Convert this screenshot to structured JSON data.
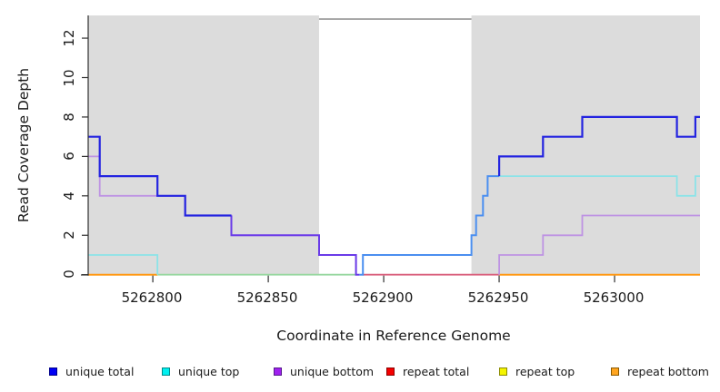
{
  "chart_data": {
    "type": "line",
    "subtype": "step-coverage-plot",
    "title": "",
    "xlabel": "Coordinate in Reference Genome",
    "ylabel": "Read Coverage Depth",
    "xlim": [
      5262772,
      5263037
    ],
    "ylim": [
      0,
      13.2
    ],
    "grid": false,
    "legend_position": "bottom",
    "xticks": [
      "5262800",
      "5262850",
      "5262900",
      "5262950",
      "5263000"
    ],
    "xtick_values": [
      5262800,
      5262850,
      5262900,
      5262950,
      5263000
    ],
    "yticks": [
      "0",
      "2",
      "4",
      "6",
      "8",
      "10",
      "12"
    ],
    "ytick_values": [
      0,
      2,
      4,
      6,
      8,
      10,
      12
    ],
    "colors": {
      "background": "#ffffff",
      "shading": "#DCDCDC",
      "gap_top_border": "#8C8C8C",
      "axis": "#2F2F2F",
      "unique_total": "#2424E0",
      "unique_top": "#8BE3E8",
      "unique_bottom": "#BE93E3",
      "repeat_total": "#D9607E",
      "repeat_top": "#98D7A0",
      "repeat_bottom": "#FF9914",
      "blend_total_plus_top": "#4B8FF0",
      "blend_total_plus_bottom": "#6A3BE8"
    },
    "shaded_regions": [
      [
        5262772,
        5262872
      ],
      [
        5262938,
        5263037
      ]
    ],
    "gap_top_border_span": [
      5262872,
      5262938
    ],
    "series": [
      {
        "name": "unique total",
        "step_points": [
          [
            5262772,
            7
          ],
          [
            5262777,
            5
          ],
          [
            5262802,
            4
          ],
          [
            5262814,
            3
          ],
          [
            5262834,
            2
          ],
          [
            5262872,
            1
          ],
          [
            5262888,
            0
          ],
          [
            5262891,
            1
          ],
          [
            5262938,
            2
          ],
          [
            5262940,
            3
          ],
          [
            5262943,
            4
          ],
          [
            5262945,
            5
          ],
          [
            5262950,
            6
          ],
          [
            5262969,
            7
          ],
          [
            5262986,
            8
          ],
          [
            5263027,
            7
          ],
          [
            5263035,
            8
          ],
          [
            5263037,
            8
          ]
        ]
      },
      {
        "name": "unique top",
        "step_points": [
          [
            5262772,
            1
          ],
          [
            5262802,
            0
          ],
          [
            5262891,
            1
          ],
          [
            5262938,
            2
          ],
          [
            5262940,
            3
          ],
          [
            5262943,
            4
          ],
          [
            5262945,
            5
          ],
          [
            5263027,
            4
          ],
          [
            5263035,
            5
          ],
          [
            5263037,
            5
          ]
        ]
      },
      {
        "name": "unique bottom",
        "step_points": [
          [
            5262772,
            6
          ],
          [
            5262777,
            4
          ],
          [
            5262814,
            3
          ],
          [
            5262834,
            2
          ],
          [
            5262872,
            1
          ],
          [
            5262888,
            0
          ],
          [
            5262950,
            1
          ],
          [
            5262969,
            2
          ],
          [
            5262986,
            3
          ],
          [
            5263037,
            3
          ]
        ]
      },
      {
        "name": "repeat total",
        "step_points": [
          [
            5262772,
            0
          ],
          [
            5263037,
            0
          ]
        ]
      },
      {
        "name": "repeat top",
        "step_points": [
          [
            5262772,
            0
          ],
          [
            5263037,
            0
          ]
        ]
      },
      {
        "name": "repeat bottom",
        "step_points": [
          [
            5262772,
            0
          ],
          [
            5263037,
            0
          ]
        ]
      }
    ],
    "rendered_polylines": [
      {
        "name": "zero-line-green-blend",
        "color": "#98D7A0",
        "width": 1.8,
        "points": [
          [
            5262802,
            0
          ],
          [
            5262888,
            0
          ]
        ]
      },
      {
        "name": "zero-line-crimson-blend",
        "color": "#D9607E",
        "width": 1.8,
        "points": [
          [
            5262891,
            0
          ],
          [
            5262950,
            0
          ]
        ]
      },
      {
        "name": "zero-line-orange-left",
        "color": "#FF9914",
        "width": 2,
        "points": [
          [
            5262772,
            0
          ],
          [
            5262802,
            0
          ]
        ]
      },
      {
        "name": "zero-line-orange-right",
        "color": "#FF9914",
        "width": 2,
        "points": [
          [
            5262950,
            0
          ],
          [
            5263037,
            0
          ]
        ]
      },
      {
        "name": "unique-bottom-left",
        "color": "#BE93E3",
        "width": 1.8,
        "points": [
          [
            5262772,
            6
          ],
          [
            5262777,
            6
          ],
          [
            5262777,
            4
          ],
          [
            5262814,
            4
          ],
          [
            5262814,
            3
          ],
          [
            5262834,
            3
          ],
          [
            5262834,
            2
          ],
          [
            5262872,
            2
          ],
          [
            5262872,
            1
          ],
          [
            5262888,
            1
          ],
          [
            5262888,
            0
          ]
        ]
      },
      {
        "name": "unique-bottom-right",
        "color": "#BE93E3",
        "width": 1.8,
        "points": [
          [
            5262950,
            0
          ],
          [
            5262950,
            1
          ],
          [
            5262969,
            1
          ],
          [
            5262969,
            2
          ],
          [
            5262986,
            2
          ],
          [
            5262986,
            3
          ],
          [
            5263037,
            3
          ]
        ]
      },
      {
        "name": "unique-top-left",
        "color": "#8BE3E8",
        "width": 1.8,
        "points": [
          [
            5262772,
            1
          ],
          [
            5262802,
            1
          ],
          [
            5262802,
            0
          ]
        ]
      },
      {
        "name": "unique-top-right",
        "color": "#8BE3E8",
        "width": 1.8,
        "points": [
          [
            5262950,
            5
          ],
          [
            5263027,
            5
          ],
          [
            5263027,
            4
          ],
          [
            5263035,
            4
          ],
          [
            5263035,
            5
          ],
          [
            5263037,
            5
          ]
        ]
      },
      {
        "name": "total-blend-violet",
        "color": "#6A3BE8",
        "width": 2,
        "points": [
          [
            5262834,
            3
          ],
          [
            5262834,
            2
          ],
          [
            5262872,
            2
          ],
          [
            5262872,
            1
          ],
          [
            5262888,
            1
          ],
          [
            5262888,
            0
          ],
          [
            5262889.5,
            0
          ]
        ]
      },
      {
        "name": "total-blend-dodger",
        "color": "#4B8FF0",
        "width": 2,
        "points": [
          [
            5262889.5,
            0
          ],
          [
            5262891,
            0
          ],
          [
            5262891,
            1
          ],
          [
            5262938,
            1
          ],
          [
            5262938,
            2
          ],
          [
            5262940,
            2
          ],
          [
            5262940,
            3
          ],
          [
            5262943,
            3
          ],
          [
            5262943,
            4
          ],
          [
            5262945,
            4
          ],
          [
            5262945,
            5
          ],
          [
            5262950,
            5
          ]
        ]
      },
      {
        "name": "unique-total-left",
        "color": "#2424E0",
        "width": 2.2,
        "points": [
          [
            5262772,
            7
          ],
          [
            5262777,
            7
          ],
          [
            5262777,
            5
          ],
          [
            5262802,
            5
          ],
          [
            5262802,
            4
          ],
          [
            5262814,
            4
          ],
          [
            5262814,
            3
          ],
          [
            5262834,
            3
          ]
        ]
      },
      {
        "name": "unique-total-right",
        "color": "#2424E0",
        "width": 2.2,
        "points": [
          [
            5262950,
            5
          ],
          [
            5262950,
            6
          ],
          [
            5262969,
            6
          ],
          [
            5262969,
            7
          ],
          [
            5262986,
            7
          ],
          [
            5262986,
            8
          ],
          [
            5263027,
            8
          ],
          [
            5263027,
            7
          ],
          [
            5263035,
            7
          ],
          [
            5263035,
            8
          ],
          [
            5263037,
            8
          ]
        ]
      }
    ],
    "legend": [
      {
        "label": "unique total",
        "fill": "#0000F5",
        "border": "#00008B"
      },
      {
        "label": "unique top",
        "fill": "#00F0F0",
        "border": "#008B8B"
      },
      {
        "label": "unique bottom",
        "fill": "#A020F0",
        "border": "#551A8B"
      },
      {
        "label": "repeat total",
        "fill": "#F50000",
        "border": "#8B0000"
      },
      {
        "label": "repeat top",
        "fill": "#F5F500",
        "border": "#8B8B00"
      },
      {
        "label": "repeat bottom",
        "fill": "#FFA520",
        "border": "#8B5A00"
      }
    ]
  }
}
